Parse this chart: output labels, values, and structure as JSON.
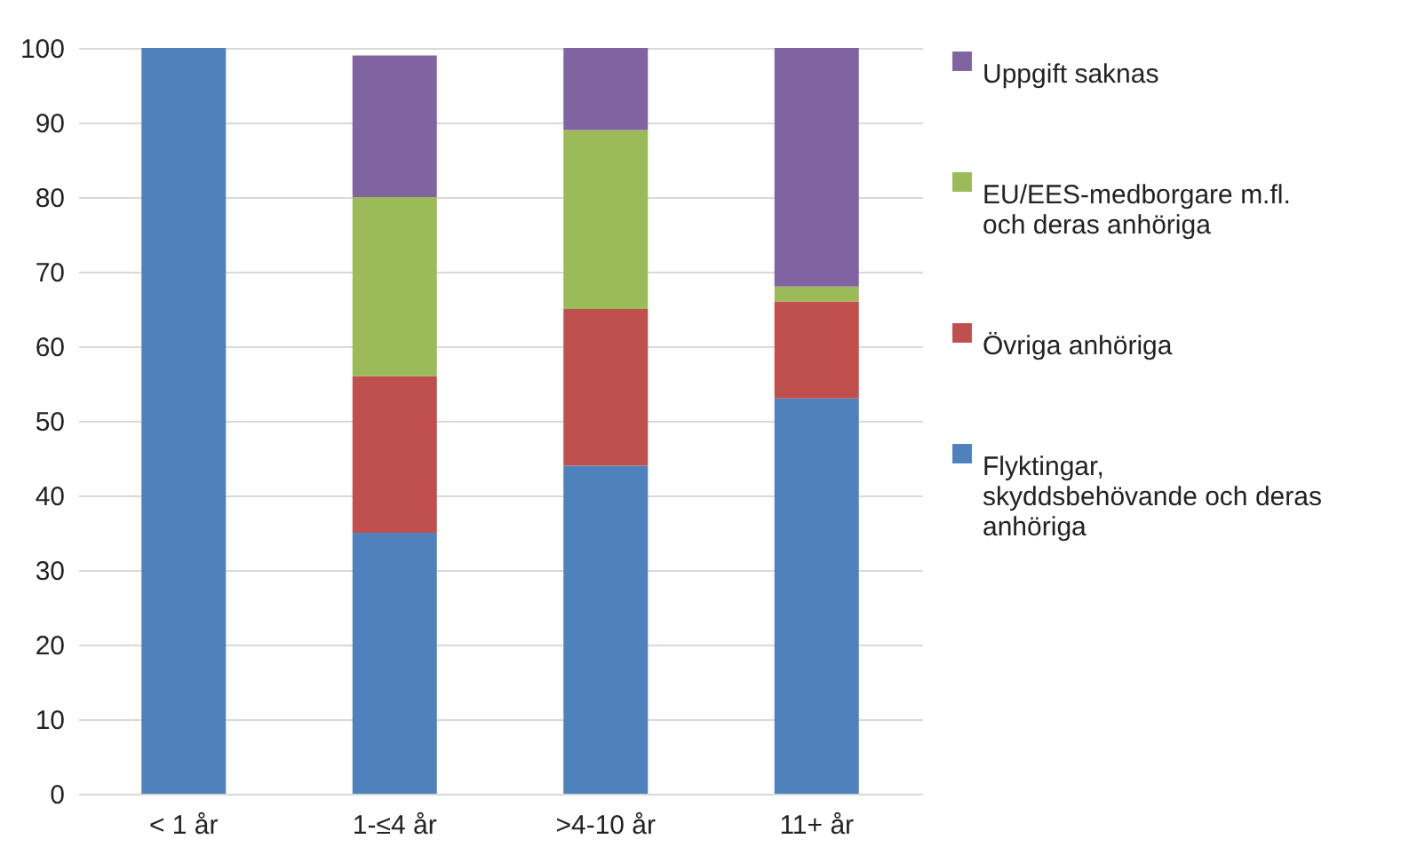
{
  "chart_data": {
    "type": "bar",
    "stacked": true,
    "categories": [
      "< 1 år",
      "1-≤4 år",
      ">4-10 år",
      "11+ år"
    ],
    "series": [
      {
        "name": "Flyktingar, skyddsbehövande och deras anhöriga",
        "color": "#4f81bd",
        "values": [
          100,
          35,
          44,
          53
        ]
      },
      {
        "name": "Övriga anhöriga",
        "color": "#c0504d",
        "values": [
          null,
          21,
          21,
          13
        ]
      },
      {
        "name": "EU/EES-medborgare m.fl. och deras anhöriga",
        "color": "#9bbb59",
        "values": [
          null,
          24,
          24,
          2
        ]
      },
      {
        "name": "Uppgift saknas",
        "color": "#8064a2",
        "values": [
          null,
          19,
          11,
          32
        ]
      }
    ],
    "ylim": [
      0,
      100
    ],
    "yticks": [
      0,
      10,
      20,
      30,
      40,
      50,
      60,
      70,
      80,
      90,
      100
    ],
    "grid": "y",
    "legend": "right"
  }
}
